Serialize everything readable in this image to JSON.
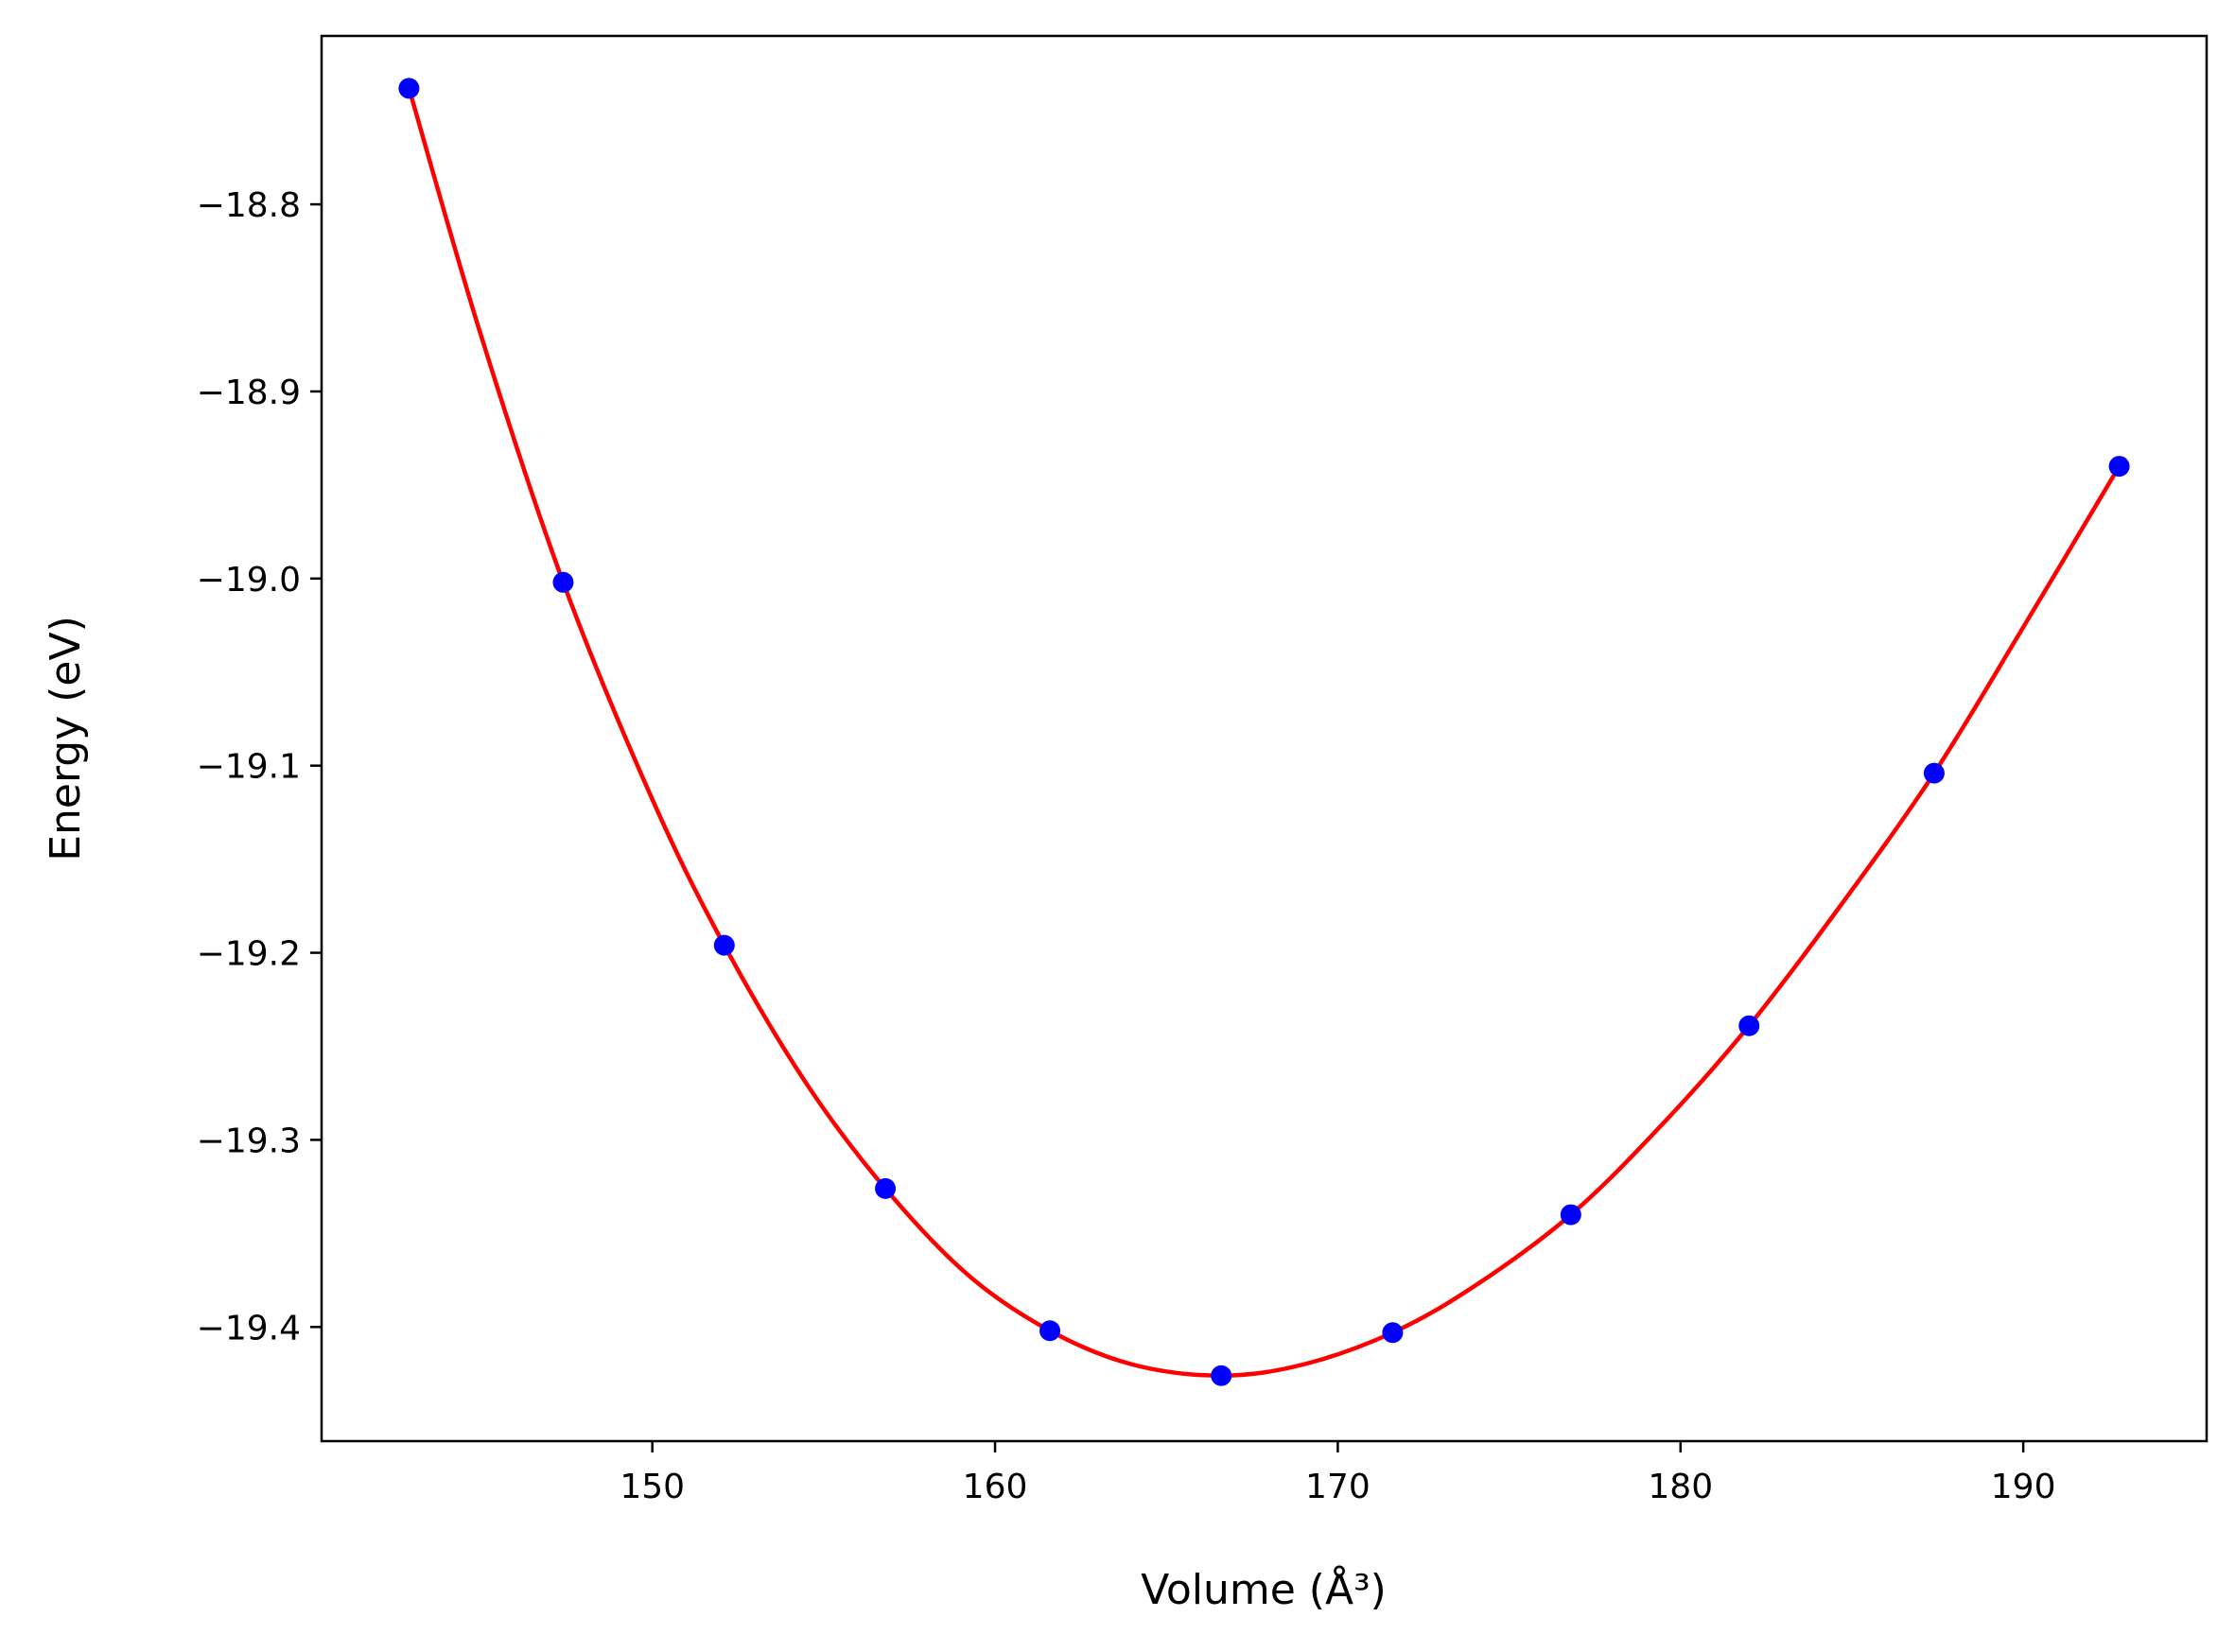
{
  "chart_data": {
    "type": "scatter",
    "title": "",
    "xlabel": "Volume (Å³)",
    "ylabel": "Energy (eV)",
    "xlim": [
      140.35,
      195.35
    ],
    "ylim": [
      -19.461,
      -18.71
    ],
    "x_ticks": [
      150,
      160,
      170,
      180,
      190
    ],
    "y_ticks": [
      -18.8,
      -18.9,
      -19.0,
      -19.1,
      -19.2,
      -19.3,
      -19.4
    ],
    "x_tick_labels": [
      "150",
      "160",
      "170",
      "180",
      "190"
    ],
    "y_tick_labels": [
      "−18.8",
      "−18.9",
      "−19.0",
      "−19.1",
      "−19.2",
      "−19.3",
      "−19.4"
    ],
    "grid": false,
    "series": [
      {
        "kind": "points",
        "color": "#0000ff",
        "x": [
          142.9,
          147.4,
          152.1,
          156.8,
          161.6,
          166.6,
          171.6,
          176.8,
          182.0,
          187.4,
          192.8
        ],
        "y": [
          -18.738,
          -19.002,
          -19.196,
          -19.326,
          -19.402,
          -19.426,
          -19.403,
          -19.34,
          -19.239,
          -19.104,
          -18.94
        ]
      },
      {
        "kind": "fit-line",
        "color": "#ff0000",
        "x": [
          142.9,
          145.0,
          147.4,
          150.0,
          152.1,
          154.5,
          156.8,
          159.2,
          161.6,
          164.0,
          166.6,
          169.0,
          171.6,
          174.0,
          176.8,
          179.4,
          182.0,
          184.7,
          187.4,
          190.0,
          192.8
        ],
        "y": [
          -18.738,
          -18.87,
          -19.002,
          -19.118,
          -19.196,
          -19.27,
          -19.326,
          -19.372,
          -19.402,
          -19.42,
          -19.426,
          -19.42,
          -19.403,
          -19.378,
          -19.34,
          -19.293,
          -19.239,
          -19.174,
          -19.104,
          -19.026,
          -18.94
        ]
      }
    ]
  }
}
